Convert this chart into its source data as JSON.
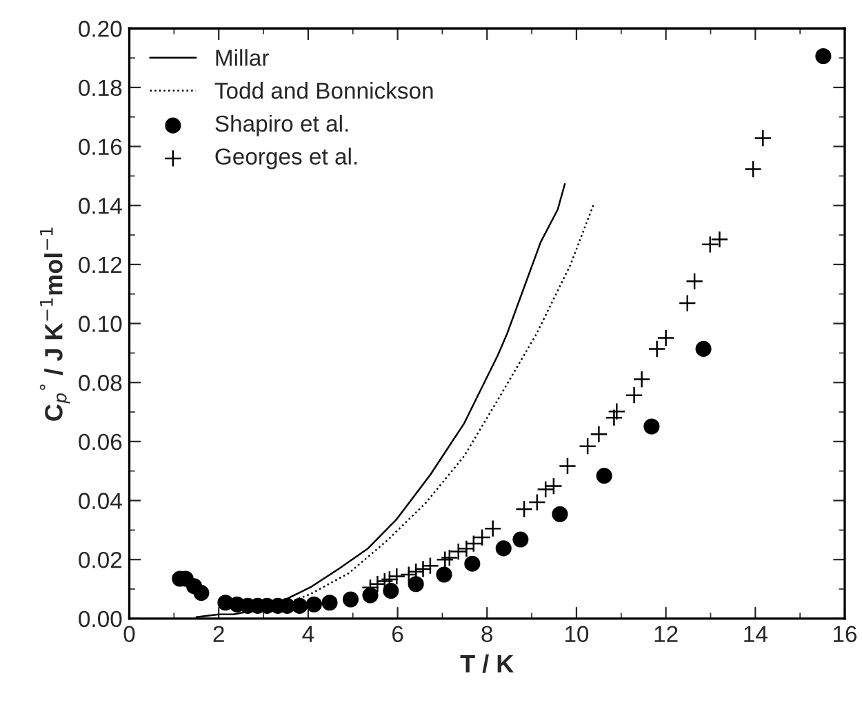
{
  "chart_data": {
    "type": "line",
    "xlabel": "T / K",
    "ylabel": "C$_{p}$$^{°}$ / J K$^{−1}$mol$^{−1}$",
    "xlim": [
      0,
      16
    ],
    "xticks": [
      0,
      2,
      4,
      6,
      8,
      10,
      12,
      14,
      16
    ],
    "ylim": [
      0,
      0.2
    ],
    "yticks": [
      {
        "value": 0,
        "label": "0.00"
      },
      {
        "value": 0.02,
        "label": "0.02"
      },
      {
        "value": 0.04,
        "label": "0.04"
      },
      {
        "value": 0.06,
        "label": "0.06"
      },
      {
        "value": 0.08,
        "label": "0.08"
      },
      {
        "value": 0.1,
        "label": "0.10"
      },
      {
        "value": 0.12,
        "label": "0.12"
      },
      {
        "value": 0.14,
        "label": "0.14"
      },
      {
        "value": 0.16,
        "label": "0.16"
      },
      {
        "value": 0.18,
        "label": "0.18"
      },
      {
        "value": 0.2,
        "label": "0.20"
      }
    ],
    "grid": false,
    "legend": "top left",
    "series": [
      {
        "name": "Millar",
        "line_style": "solid",
        "color": "#000000",
        "x": [
          1.5,
          2.0,
          2.33,
          2.76,
          3.3,
          4.05,
          4.7,
          5.34,
          5.98,
          6.73,
          7.49,
          8.24,
          8.45,
          9.2,
          9.58,
          9.74
        ],
        "values": [
          0.0005,
          0.0014,
          0.0014,
          0.0027,
          0.005,
          0.0106,
          0.017,
          0.0238,
          0.0337,
          0.0487,
          0.0662,
          0.0892,
          0.0966,
          0.1276,
          0.1386,
          0.1473
        ]
      },
      {
        "name": "Todd and Bonnickson",
        "line_style": "dotted",
        "color": "#000000",
        "x": [
          3.2,
          3.4,
          4.05,
          4.91,
          5.77,
          6.63,
          7.49,
          8.24,
          9.1,
          9.86,
          10.4
        ],
        "values": [
          0.0043,
          0.0045,
          0.0083,
          0.0154,
          0.0265,
          0.0392,
          0.0551,
          0.0741,
          0.0963,
          0.1197,
          0.141
        ]
      },
      {
        "name": "Shapiro et al.",
        "type": "scatter",
        "marker": "circle",
        "color": "#000000",
        "x": [
          1.13,
          1.26,
          1.45,
          1.61,
          2.15,
          2.41,
          2.65,
          2.87,
          3.08,
          3.32,
          3.53,
          3.81,
          4.13,
          4.48,
          4.95,
          5.39,
          5.85,
          6.41,
          7.04,
          7.67,
          8.37,
          8.75,
          9.63,
          10.62,
          11.68,
          12.84,
          15.52
        ],
        "values": [
          0.0135,
          0.0135,
          0.011,
          0.0087,
          0.0054,
          0.0048,
          0.0043,
          0.0043,
          0.0043,
          0.0043,
          0.0043,
          0.0043,
          0.0048,
          0.0054,
          0.0065,
          0.0079,
          0.0094,
          0.0117,
          0.0149,
          0.0186,
          0.0238,
          0.0268,
          0.0354,
          0.0484,
          0.0651,
          0.0914,
          0.1906
        ]
      },
      {
        "name": "Georges et al.",
        "type": "scatter",
        "marker": "cross",
        "color": "#000000",
        "x": [
          5.39,
          5.55,
          5.71,
          5.82,
          5.98,
          6.25,
          6.41,
          6.57,
          6.73,
          7.06,
          7.16,
          7.36,
          7.54,
          7.7,
          7.89,
          8.13,
          8.83,
          9.12,
          9.31,
          9.49,
          9.8,
          10.25,
          10.5,
          10.84,
          10.9,
          11.29,
          11.46,
          11.8,
          12.0,
          12.48,
          12.64,
          12.99,
          13.2,
          13.95,
          14.17
        ],
        "values": [
          0.0105,
          0.0117,
          0.0127,
          0.0133,
          0.0143,
          0.0149,
          0.0159,
          0.0168,
          0.0179,
          0.02,
          0.0206,
          0.0227,
          0.0237,
          0.0254,
          0.0275,
          0.0305,
          0.0371,
          0.0394,
          0.0438,
          0.0449,
          0.0517,
          0.0584,
          0.0625,
          0.0681,
          0.0702,
          0.0757,
          0.0811,
          0.0914,
          0.0951,
          0.1069,
          0.1143,
          0.1268,
          0.1285,
          0.1523,
          0.1628
        ]
      }
    ]
  }
}
